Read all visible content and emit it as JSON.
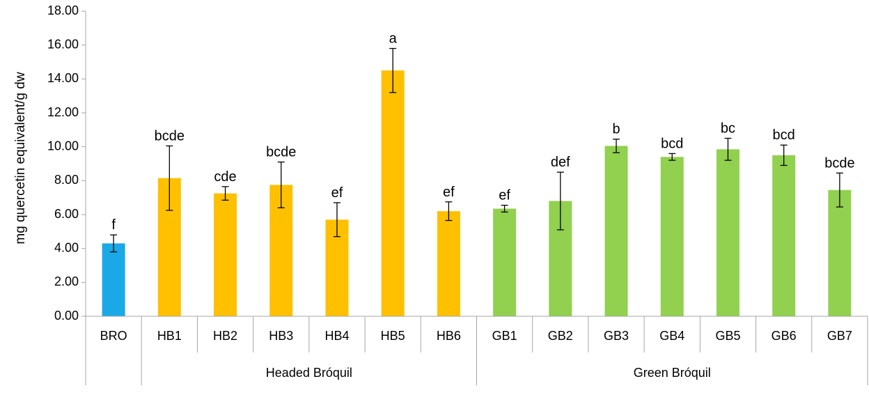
{
  "chart_data": {
    "type": "bar",
    "title": "",
    "xlabel": "",
    "ylabel": "mg quercetin equivalent/g dw",
    "ylim": [
      0,
      18
    ],
    "yticks": [
      "0.00",
      "2.00",
      "4.00",
      "6.00",
      "8.00",
      "10.00",
      "12.00",
      "14.00",
      "16.00",
      "18.00"
    ],
    "grid": false,
    "bars": [
      {
        "category": "BRO",
        "value": 4.3,
        "error": 0.5,
        "label": "f",
        "color": "#1aa9e6"
      },
      {
        "category": "HB1",
        "value": 8.15,
        "error": 1.9,
        "label": "bcde",
        "color": "#ffc000"
      },
      {
        "category": "HB2",
        "value": 7.25,
        "error": 0.4,
        "label": "cde",
        "color": "#ffc000"
      },
      {
        "category": "HB3",
        "value": 7.75,
        "error": 1.35,
        "label": "bcde",
        "color": "#ffc000"
      },
      {
        "category": "HB4",
        "value": 5.7,
        "error": 1.0,
        "label": "ef",
        "color": "#ffc000"
      },
      {
        "category": "HB5",
        "value": 14.5,
        "error": 1.3,
        "label": "a",
        "color": "#ffc000"
      },
      {
        "category": "HB6",
        "value": 6.2,
        "error": 0.55,
        "label": "ef",
        "color": "#ffc000"
      },
      {
        "category": "GB1",
        "value": 6.35,
        "error": 0.2,
        "label": "ef",
        "color": "#92d050"
      },
      {
        "category": "GB2",
        "value": 6.8,
        "error": 1.7,
        "label": "def",
        "color": "#92d050"
      },
      {
        "category": "GB3",
        "value": 10.05,
        "error": 0.4,
        "label": "b",
        "color": "#92d050"
      },
      {
        "category": "GB4",
        "value": 9.4,
        "error": 0.2,
        "label": "bcd",
        "color": "#92d050"
      },
      {
        "category": "GB5",
        "value": 9.85,
        "error": 0.65,
        "label": "bc",
        "color": "#92d050"
      },
      {
        "category": "GB6",
        "value": 9.5,
        "error": 0.6,
        "label": "bcd",
        "color": "#92d050"
      },
      {
        "category": "GB7",
        "value": 7.45,
        "error": 1.0,
        "label": "bcde",
        "color": "#92d050"
      }
    ],
    "groups": [
      {
        "name": "",
        "start": 0,
        "end": 0
      },
      {
        "name": "Headed Bróquil",
        "start": 1,
        "end": 6
      },
      {
        "name": "Green Bróquil",
        "start": 7,
        "end": 13
      }
    ]
  }
}
